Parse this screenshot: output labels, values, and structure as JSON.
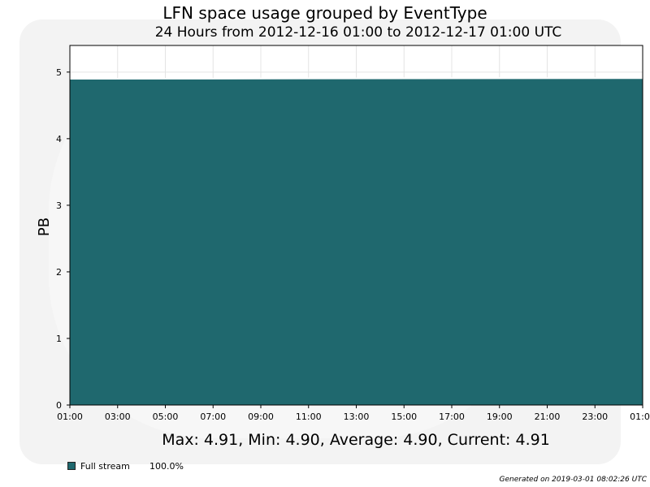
{
  "chart_data": {
    "type": "area",
    "title": "LFN space usage grouped by EventType",
    "subtitle": "24 Hours from 2012-12-16 01:00 to 2012-12-17 01:00 UTC",
    "xlabel": "",
    "ylabel": "PB",
    "xlim": [
      "2012-12-16 01:00",
      "2012-12-17 01:00"
    ],
    "ylim": [
      0,
      5.4
    ],
    "x_ticks": [
      "01:00",
      "03:00",
      "05:00",
      "07:00",
      "09:00",
      "11:00",
      "13:00",
      "15:00",
      "17:00",
      "19:00",
      "21:00",
      "23:00",
      "01:00"
    ],
    "y_ticks": [
      0,
      1,
      2,
      3,
      4,
      5
    ],
    "grid": true,
    "series": [
      {
        "name": "Full stream",
        "color": "#1f686e",
        "x": [
          "2012-12-16 01:00",
          "2012-12-17 01:00"
        ],
        "values": [
          4.9,
          4.91
        ]
      }
    ],
    "stats": "Max: 4.91, Min: 4.90, Average: 4.90, Current: 4.91",
    "legend": [
      {
        "name": "Full stream",
        "percent": "100.0%",
        "color": "#1f686e"
      }
    ]
  },
  "footer": {
    "generated": "Generated on 2019-03-01 08:02:26 UTC"
  }
}
